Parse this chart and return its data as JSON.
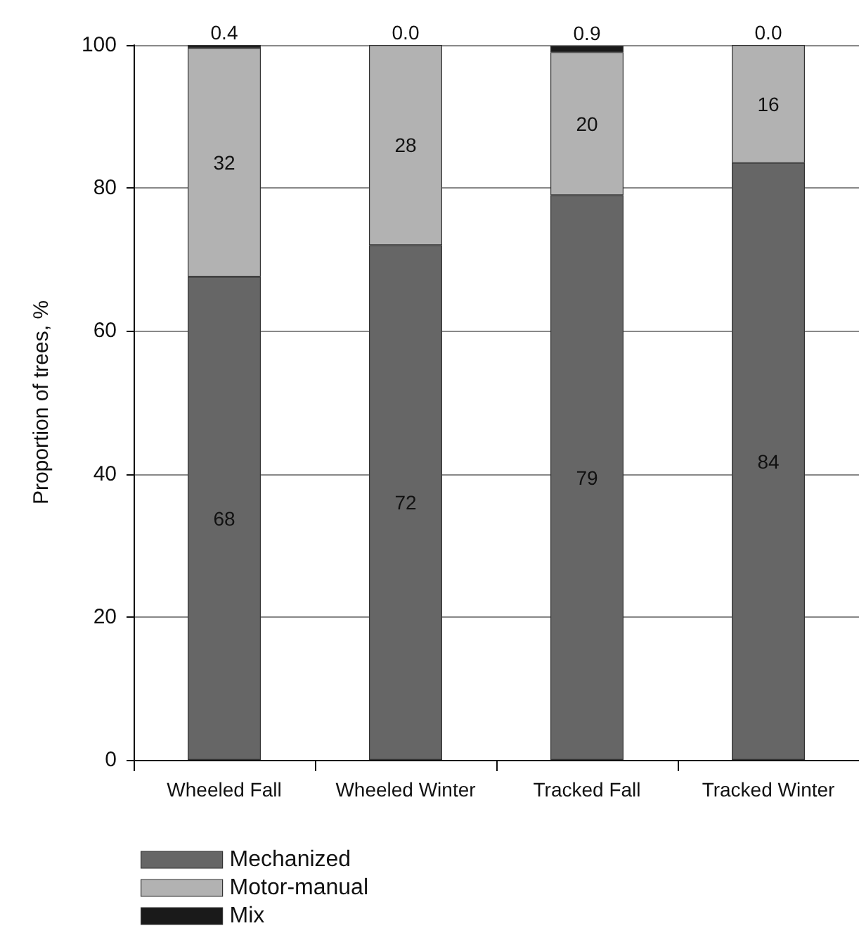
{
  "chart_data": {
    "type": "bar",
    "stacked": true,
    "ylabel": "Proportion of trees, %",
    "categories": [
      "Wheeled Fall",
      "Wheeled Winter",
      "Tracked Fall",
      "Tracked Winter"
    ],
    "series": [
      {
        "name": "Mechanized",
        "color": "#666666",
        "values": [
          67.6,
          72,
          79,
          83.5
        ],
        "value_labels": [
          "68",
          "72",
          "79",
          "84"
        ]
      },
      {
        "name": "Motor-manual",
        "color": "#b2b2b2",
        "values": [
          32,
          28,
          20,
          16.5
        ],
        "value_labels": [
          "32",
          "28",
          "20",
          "16"
        ]
      },
      {
        "name": "Mix",
        "color": "#1a1a1a",
        "values": [
          0.4,
          0,
          0.9,
          0
        ],
        "value_labels": [
          "0.4",
          "0.0",
          "0.9",
          "0.0"
        ]
      }
    ],
    "ylim": [
      0,
      100
    ],
    "yticks": [
      0,
      20,
      40,
      60,
      80,
      100
    ],
    "grid": "y",
    "legend": "bottom left"
  }
}
